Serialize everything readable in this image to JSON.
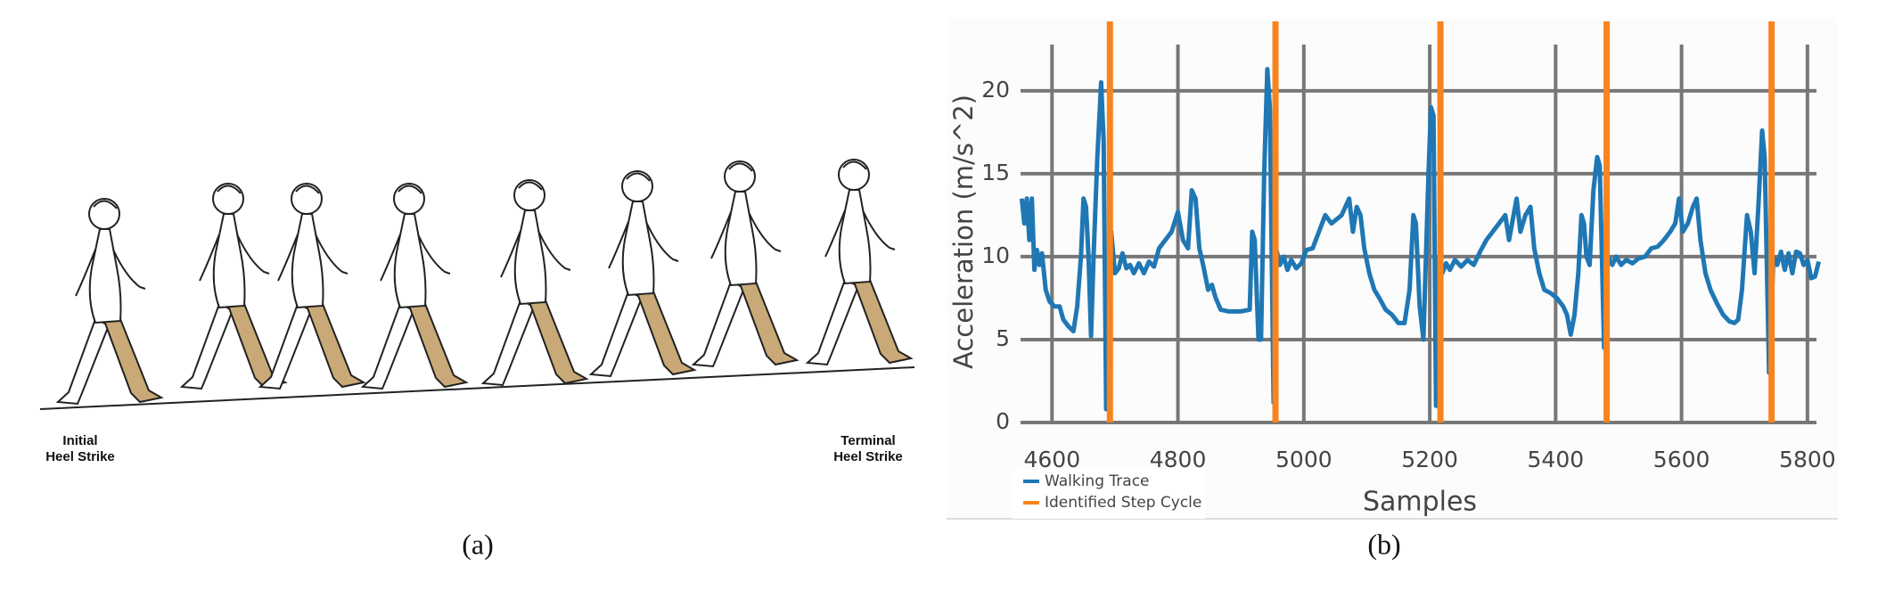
{
  "panel_a": {
    "initial_label": [
      "Initial",
      "Heel Strike"
    ],
    "terminal_label": [
      "Terminal",
      "Heel Strike"
    ],
    "caption": "(a)"
  },
  "panel_b_caption": "(b)",
  "chart_data": {
    "type": "line",
    "x_label": "Samples",
    "y_label": "Acceleration (m/s^2)",
    "xlim": [
      4550,
      5820
    ],
    "xticks": [
      4600,
      4800,
      5000,
      5200,
      5400,
      5600,
      5800
    ],
    "ylim": [
      0,
      23
    ],
    "yticks": [
      0,
      5,
      10,
      15,
      20
    ],
    "grid": true,
    "series": [
      {
        "name": "Walking Trace",
        "color": "#1f77b4",
        "x": [
          4552,
          4556,
          4560,
          4564,
          4568,
          4572,
          4576,
          4580,
          4584,
          4590,
          4596,
          4604,
          4612,
          4618,
          4626,
          4634,
          4640,
          4646,
          4650,
          4654,
          4658,
          4662,
          4666,
          4672,
          4678,
          4682,
          4686,
          4690,
          4694,
          4700,
          4706,
          4712,
          4718,
          4724,
          4730,
          4738,
          4746,
          4754,
          4762,
          4770,
          4780,
          4790,
          4800,
          4808,
          4816,
          4822,
          4828,
          4834,
          4840,
          4848,
          4854,
          4860,
          4868,
          4880,
          4900,
          4914,
          4918,
          4922,
          4928,
          4932,
          4937,
          4942,
          4946,
          4952,
          4956,
          4962,
          4968,
          4974,
          4980,
          4988,
          4996,
          5004,
          5014,
          5024,
          5034,
          5044,
          5060,
          5072,
          5078,
          5084,
          5090,
          5096,
          5104,
          5112,
          5120,
          5130,
          5140,
          5150,
          5160,
          5168,
          5174,
          5178,
          5184,
          5190,
          5198,
          5202,
          5206,
          5210,
          5214,
          5220,
          5226,
          5232,
          5240,
          5250,
          5260,
          5270,
          5280,
          5290,
          5300,
          5310,
          5320,
          5326,
          5338,
          5344,
          5352,
          5360,
          5366,
          5374,
          5382,
          5392,
          5402,
          5412,
          5418,
          5424,
          5430,
          5436,
          5441,
          5445,
          5449,
          5454,
          5460,
          5466,
          5470,
          5477,
          5483,
          5490,
          5496,
          5504,
          5512,
          5522,
          5532,
          5542,
          5552,
          5562,
          5572,
          5582,
          5590,
          5596,
          5602,
          5610,
          5618,
          5624,
          5630,
          5638,
          5646,
          5656,
          5666,
          5676,
          5684,
          5690,
          5696,
          5704,
          5710,
          5716,
          5722,
          5728,
          5732,
          5739,
          5746,
          5752,
          5758,
          5764,
          5770,
          5776,
          5782,
          5788,
          5794,
          5800,
          5806,
          5812,
          5818
        ],
        "values": [
          13.5,
          12,
          13.5,
          11,
          13.5,
          9.2,
          10.4,
          9.5,
          10.2,
          8,
          7.3,
          7,
          7,
          6.2,
          5.8,
          5.5,
          7,
          10,
          13.5,
          13,
          10,
          5.2,
          10,
          16,
          20.5,
          17,
          0.8,
          9,
          11.5,
          9,
          9.3,
          10.2,
          9.3,
          9.5,
          9,
          9.6,
          9,
          9.7,
          9.4,
          10.5,
          11,
          11.5,
          12.7,
          11,
          10.5,
          14,
          13.5,
          10.5,
          9.5,
          8,
          8.3,
          7.5,
          6.8,
          6.7,
          6.7,
          6.8,
          11.5,
          11,
          5,
          5,
          15,
          21.3,
          19,
          1.2,
          10.5,
          9.5,
          10,
          9.2,
          9.8,
          9.3,
          9.6,
          10.4,
          10.5,
          11.5,
          12.5,
          12,
          12.5,
          13.5,
          11.5,
          13,
          12.5,
          10.5,
          9,
          8,
          7.5,
          6.8,
          6.5,
          6,
          6,
          8,
          12.5,
          12,
          7,
          5,
          15,
          19,
          18.5,
          1,
          10,
          9,
          9.6,
          9.2,
          9.8,
          9.4,
          9.8,
          9.5,
          10.3,
          11,
          11.5,
          12,
          12.5,
          11,
          13.5,
          11.5,
          12.5,
          13,
          10.5,
          9,
          8,
          7.8,
          7.5,
          7,
          6.5,
          5.3,
          6.5,
          9,
          12.5,
          12,
          10,
          9.5,
          14,
          16,
          15.5,
          4.5,
          10,
          9.5,
          10,
          9.5,
          9.8,
          9.6,
          9.9,
          10,
          10.5,
          10.6,
          11,
          11.5,
          12,
          13.5,
          11.5,
          12,
          13,
          13.5,
          11,
          9,
          8,
          7.2,
          6.5,
          6.1,
          6,
          6.2,
          8,
          12.5,
          11.5,
          9,
          13,
          17.6,
          16,
          3,
          10,
          9.5,
          10.3,
          9.2,
          10.2,
          9,
          10.3,
          10.2,
          9.5,
          9.8,
          8.7,
          8.8,
          9.7
        ]
      },
      {
        "name": "Identified Step Cycle",
        "color": "#f7841e",
        "x": [
          4692,
          4955,
          5217,
          5481,
          5743
        ]
      }
    ]
  }
}
